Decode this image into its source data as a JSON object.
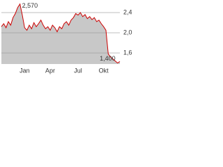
{
  "chart_data": {
    "type": "area",
    "categories": [
      null,
      null,
      null,
      null,
      null,
      null,
      null,
      null,
      null,
      null,
      "Jan",
      null,
      null,
      null,
      null,
      null,
      null,
      null,
      null,
      null,
      null,
      "Apr",
      null,
      null,
      null,
      null,
      null,
      null,
      null,
      null,
      null,
      null,
      null,
      "Jul",
      null,
      null,
      null,
      null,
      null,
      null,
      null,
      null,
      null,
      null,
      "Okt",
      null,
      null,
      null,
      null,
      null,
      null,
      null
    ],
    "series": [
      {
        "color": "#cc0000",
        "fill": "#c8c8c8",
        "values": [
          2.12,
          2.18,
          2.1,
          2.22,
          2.15,
          2.3,
          2.38,
          2.5,
          2.57,
          2.35,
          2.1,
          2.05,
          2.15,
          2.08,
          2.2,
          2.12,
          2.18,
          2.25,
          2.15,
          2.08,
          2.12,
          2.05,
          2.15,
          2.1,
          2.02,
          2.12,
          2.08,
          2.18,
          2.22,
          2.15,
          2.25,
          2.3,
          2.38,
          2.35,
          2.4,
          2.32,
          2.36,
          2.28,
          2.32,
          2.26,
          2.3,
          2.22,
          2.25,
          2.18,
          2.12,
          2.05,
          1.58,
          1.52,
          1.48,
          1.44,
          1.4,
          1.43
        ]
      }
    ],
    "annotations": [
      {
        "label": "2,570",
        "value": 2.57
      },
      {
        "label": "1,400",
        "value": 1.4
      }
    ],
    "ylim": [
      1.38,
      2.58
    ],
    "yticks": [
      {
        "value": 1.6,
        "label": "1,6"
      },
      {
        "value": 2.0,
        "label": "2,0"
      },
      {
        "value": 2.4,
        "label": "2,4"
      }
    ],
    "grid": true
  }
}
